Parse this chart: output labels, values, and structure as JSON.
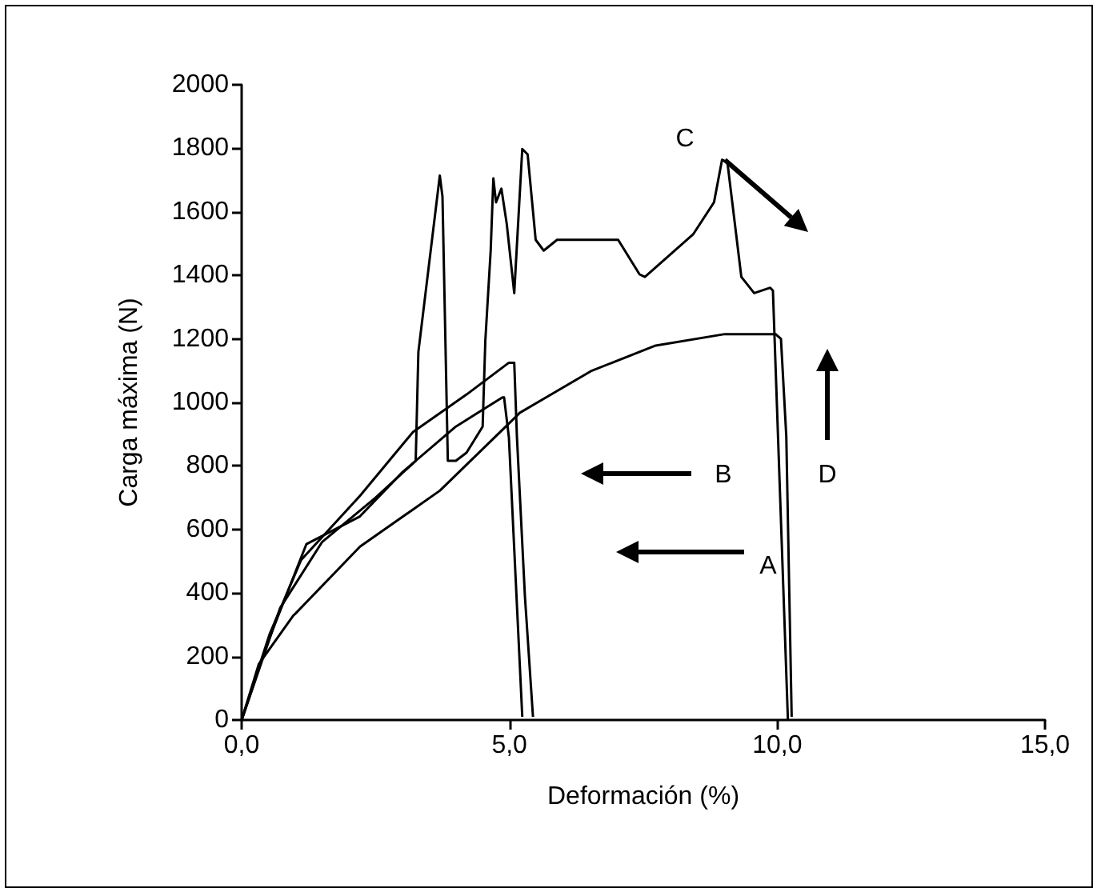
{
  "chart_data": {
    "type": "line",
    "xlabel": "Deformación (%)",
    "ylabel": "Carga máxima (N)",
    "xlim": [
      0,
      15
    ],
    "xticks": [
      {
        "value": 0,
        "label": "0,0"
      },
      {
        "value": 5,
        "label": "5,0"
      },
      {
        "value": 10,
        "label": "10,0"
      },
      {
        "value": 15,
        "label": "15,0"
      }
    ],
    "ylim": [
      0,
      2000
    ],
    "yticks": [
      0,
      200,
      400,
      600,
      800,
      1000,
      1200,
      1400,
      1600,
      1800,
      2000
    ],
    "marker": "none",
    "line_style": "solid",
    "series": [
      {
        "color": "#000000",
        "x": [
          0,
          0.32,
          0.96,
          1.01,
          2.21,
          3.7,
          5.14,
          5.19,
          6.54,
          7.73,
          9.02,
          9.97,
          10.07,
          10.17,
          10.27
        ],
        "values": [
          0,
          176,
          328,
          336,
          546,
          722,
          958,
          967,
          1100,
          1179,
          1215,
          1215,
          1200,
          892,
          10
        ]
      },
      {
        "color": "#000000",
        "x": [
          0,
          0.52,
          1.11,
          2.21,
          3.2,
          4.2,
          4.99,
          5.09,
          5.14,
          5.29,
          5.44
        ],
        "values": [
          0,
          269,
          504,
          706,
          907,
          1025,
          1125,
          1125,
          892,
          388,
          10
        ]
      },
      {
        "color": "#000000",
        "x": [
          0,
          0.5,
          1.21,
          2.2,
          3.0,
          4.0,
          4.87,
          4.9,
          4.99,
          5.24
        ],
        "values": [
          0,
          250,
          554,
          640,
          780,
          924,
          1016,
          1016,
          890,
          10
        ]
      },
      {
        "color": "#000000",
        "x": [
          0,
          0.72,
          1.5,
          2.5,
          3.25,
          3.3,
          3.7,
          3.75,
          3.85,
          4.0,
          4.2,
          4.5,
          4.55,
          4.65,
          4.7,
          4.75,
          4.85,
          4.95,
          5.09,
          5.24,
          5.34,
          5.49,
          5.64,
          5.89,
          7.03,
          7.43,
          7.53,
          8.43,
          8.82,
          8.97,
          9.07,
          9.33,
          9.57,
          9.87,
          9.92,
          10.2
        ],
        "values": [
          0,
          353,
          560,
          700,
          816,
          1159,
          1714,
          1648,
          816,
          816,
          842,
          924,
          1194,
          1478,
          1705,
          1630,
          1673,
          1562,
          1344,
          1798,
          1781,
          1512,
          1478,
          1512,
          1512,
          1403,
          1395,
          1529,
          1630,
          1764,
          1756,
          1395,
          1344,
          1361,
          1352,
          0
        ]
      }
    ],
    "annotations": [
      "A",
      "B",
      "C",
      "D"
    ]
  }
}
